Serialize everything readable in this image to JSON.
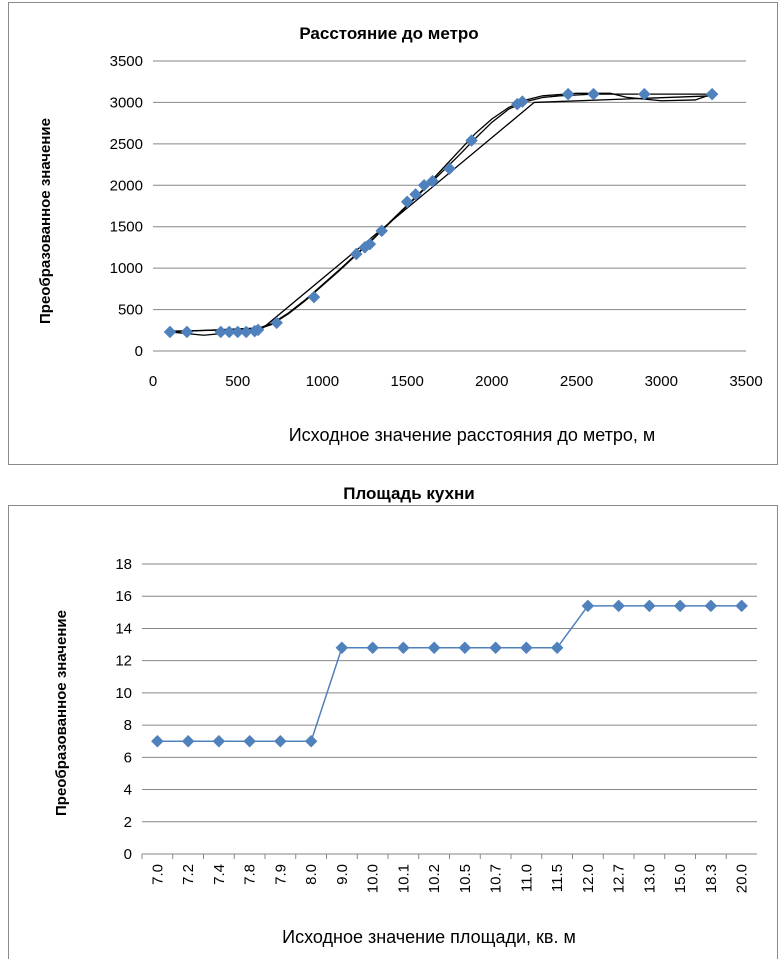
{
  "chart_data": [
    {
      "type": "scatter",
      "title": "Расстояние до метро",
      "xlabel": "Исходное значение расстояния до метро, м",
      "ylabel": "Преобразованное значение",
      "xlim": [
        0,
        3500
      ],
      "ylim": [
        0,
        3500
      ],
      "x_ticks": [
        "0",
        "500",
        "1000",
        "1500",
        "2000",
        "2500",
        "3000",
        "3500"
      ],
      "y_ticks": [
        "0",
        "500",
        "1000",
        "1500",
        "2000",
        "2500",
        "3000",
        "3500"
      ],
      "grid": true,
      "marker_color": "#4f81bd",
      "line_color": "#000000",
      "points": [
        {
          "x": 100,
          "y": 230
        },
        {
          "x": 200,
          "y": 230
        },
        {
          "x": 400,
          "y": 230
        },
        {
          "x": 450,
          "y": 230
        },
        {
          "x": 500,
          "y": 230
        },
        {
          "x": 550,
          "y": 230
        },
        {
          "x": 600,
          "y": 240
        },
        {
          "x": 620,
          "y": 255
        },
        {
          "x": 730,
          "y": 340
        },
        {
          "x": 950,
          "y": 650
        },
        {
          "x": 1200,
          "y": 1170
        },
        {
          "x": 1250,
          "y": 1250
        },
        {
          "x": 1280,
          "y": 1290
        },
        {
          "x": 1350,
          "y": 1450
        },
        {
          "x": 1500,
          "y": 1800
        },
        {
          "x": 1550,
          "y": 1890
        },
        {
          "x": 1600,
          "y": 2000
        },
        {
          "x": 1650,
          "y": 2050
        },
        {
          "x": 1750,
          "y": 2200
        },
        {
          "x": 1880,
          "y": 2540
        },
        {
          "x": 2150,
          "y": 2980
        },
        {
          "x": 2180,
          "y": 3010
        },
        {
          "x": 2450,
          "y": 3100
        },
        {
          "x": 2600,
          "y": 3100
        },
        {
          "x": 2900,
          "y": 3100
        },
        {
          "x": 3300,
          "y": 3100
        }
      ],
      "curves": [
        {
          "x": [
            100,
            600,
            700,
            800,
            900,
            1000,
            1100,
            1200,
            1300,
            1400,
            1500,
            1600,
            1700,
            1800,
            1900,
            2000,
            2100,
            2200,
            2300,
            2400,
            2600,
            2800,
            3000,
            3300
          ],
          "y": [
            240,
            260,
            330,
            460,
            620,
            800,
            980,
            1170,
            1360,
            1550,
            1750,
            1950,
            2150,
            2350,
            2560,
            2760,
            2920,
            3010,
            3060,
            3080,
            3100,
            3100,
            3100,
            3100
          ]
        },
        {
          "x": [
            100,
            300,
            400,
            600,
            700,
            800,
            900,
            1000,
            1100,
            1200,
            1300,
            1400,
            1500,
            1600,
            1700,
            1800,
            1900,
            2000,
            2100,
            2200,
            2300,
            2500,
            2700,
            2800,
            3000,
            3200,
            3300
          ],
          "y": [
            230,
            190,
            210,
            250,
            320,
            450,
            610,
            790,
            970,
            1160,
            1350,
            1560,
            1760,
            1960,
            2180,
            2400,
            2620,
            2800,
            2940,
            3030,
            3080,
            3110,
            3110,
            3060,
            3020,
            3030,
            3100
          ]
        },
        {
          "x": [
            100,
            650,
            2250,
            3300
          ],
          "y": [
            230,
            280,
            3000,
            3080
          ]
        }
      ]
    },
    {
      "type": "line",
      "title": "Площадь кухни",
      "xlabel": "Исходное значение площади,  кв. м",
      "ylabel": "Преобразованное значение",
      "ylim": [
        0,
        18
      ],
      "y_ticks": [
        "0",
        "2",
        "4",
        "6",
        "8",
        "10",
        "12",
        "14",
        "16",
        "18"
      ],
      "grid": true,
      "series_color": "#4f81bd",
      "categories": [
        "7.0",
        "7.2",
        "7.4",
        "7.8",
        "7.9",
        "8.0",
        "9.0",
        "10.0",
        "10.1",
        "10.2",
        "10.5",
        "10.7",
        "11.0",
        "11.5",
        "12.0",
        "12.7",
        "13.0",
        "15.0",
        "18.3",
        "20.0"
      ],
      "values": [
        7.0,
        7.0,
        7.0,
        7.0,
        7.0,
        7.0,
        12.8,
        12.8,
        12.8,
        12.8,
        12.8,
        12.8,
        12.8,
        12.8,
        15.4,
        15.4,
        15.4,
        15.4,
        15.4,
        15.4
      ]
    }
  ]
}
